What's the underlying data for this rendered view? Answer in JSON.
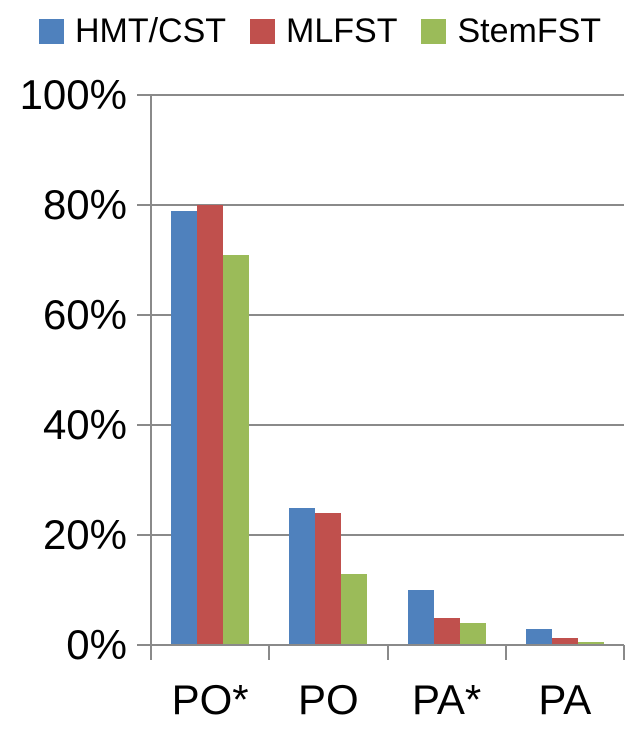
{
  "chart_data": {
    "type": "bar",
    "title": "",
    "xlabel": "",
    "ylabel": "",
    "categories": [
      "PO*",
      "PO",
      "PA*",
      "PA"
    ],
    "series": [
      {
        "name": "HMT/CST",
        "color": "#4F81BD",
        "values": [
          79,
          25,
          10,
          3
        ]
      },
      {
        "name": "MLFST",
        "color": "#C0504D",
        "values": [
          80,
          24,
          5,
          1.3
        ]
      },
      {
        "name": "StemFST",
        "color": "#9BBB59",
        "values": [
          71,
          13,
          4,
          0.5
        ]
      }
    ],
    "ylim": [
      0,
      100
    ],
    "ytick_labels": [
      "0%",
      "20%",
      "40%",
      "60%",
      "80%",
      "100%"
    ],
    "legend_position": "top",
    "grid": true,
    "grid_color": "#8A8A8A",
    "axis_color": "#8A8A8A",
    "text_color": "#000000",
    "background_color": "#FFFFFF"
  }
}
